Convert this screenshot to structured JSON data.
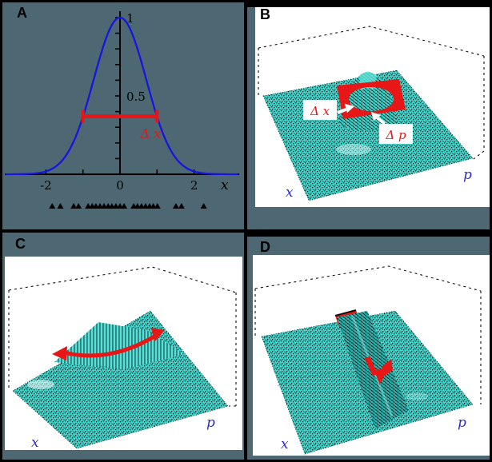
{
  "figure_title": "Phase-space uncertainty figure (4 panels)",
  "colors": {
    "background_slate": "#4d6872",
    "plot_white": "#ffffff",
    "surface_teal": "#3ed6cd",
    "surface_shadow_teal": "#2db3ae",
    "annotation_red": "#e81717",
    "curve_blue": "#1616e0",
    "axis_label_blue": "#2d2dc8",
    "frame_black": "#000000"
  },
  "panels": {
    "a": {
      "label": "A",
      "x_axis_label": "x",
      "x_tick_labels": [
        "-2",
        "0",
        "2"
      ],
      "y_tick_labels": [
        "1",
        "0.5"
      ],
      "annotation": "Δ x"
    },
    "b": {
      "label": "B",
      "x_axis_label": "x",
      "p_axis_label": "p",
      "delta_x_label": "Δ x",
      "delta_p_label": "Δ p"
    },
    "c": {
      "label": "C",
      "x_axis_label": "x",
      "p_axis_label": "p"
    },
    "d": {
      "label": "D",
      "x_axis_label": "x",
      "p_axis_label": "p"
    }
  },
  "chart_data": [
    {
      "panel": "A",
      "type": "line",
      "title": "",
      "curve": "gaussian",
      "formula": "y = exp(-x^2)",
      "x_range": [
        -3.1,
        3.2
      ],
      "ylim": [
        0,
        1.05
      ],
      "x_ticks": [
        -2,
        -1,
        0,
        1,
        2
      ],
      "x_tick_labels": [
        {
          "v": -2,
          "t": "-2"
        },
        {
          "v": 0,
          "t": "0"
        },
        {
          "v": 2,
          "t": "2"
        }
      ],
      "y_ticks": [
        0.1,
        0.2,
        0.3,
        0.4,
        0.5,
        0.6,
        0.7,
        0.8,
        0.9,
        1.0
      ],
      "y_tick_labels": [
        {
          "v": 1,
          "t": "1"
        },
        {
          "v": 0.5,
          "t": "0.5"
        }
      ],
      "xlabel": "x",
      "ylabel": "",
      "interval": {
        "from": -1,
        "to": 1,
        "y": 0.37,
        "label": "Δ x"
      },
      "samples_x": [
        -1.83,
        -1.61,
        -1.25,
        -1.12,
        -0.86,
        -0.75,
        -0.65,
        -0.54,
        -0.43,
        -0.32,
        -0.22,
        -0.11,
        0,
        0.11,
        0.37,
        0.47,
        0.58,
        0.69,
        0.8,
        0.9,
        1.01,
        1.51,
        1.66,
        2.26
      ]
    },
    {
      "panel": "B",
      "type": "surface",
      "axes": {
        "front_left": "x",
        "front_right": "p"
      },
      "feature": "symmetric gaussian peak at origin of phase space",
      "annotations": [
        "Δ x",
        "Δ p"
      ]
    },
    {
      "panel": "C",
      "type": "surface",
      "axes": {
        "front_left": "x",
        "front_right": "p"
      },
      "feature": "squeezed state: ridge elongated along x, red double arrow along ridge"
    },
    {
      "panel": "D",
      "type": "surface",
      "axes": {
        "front_left": "x",
        "front_right": "p"
      },
      "feature": "squeezed state: ridge elongated along p, red double arrow along ridge"
    }
  ]
}
